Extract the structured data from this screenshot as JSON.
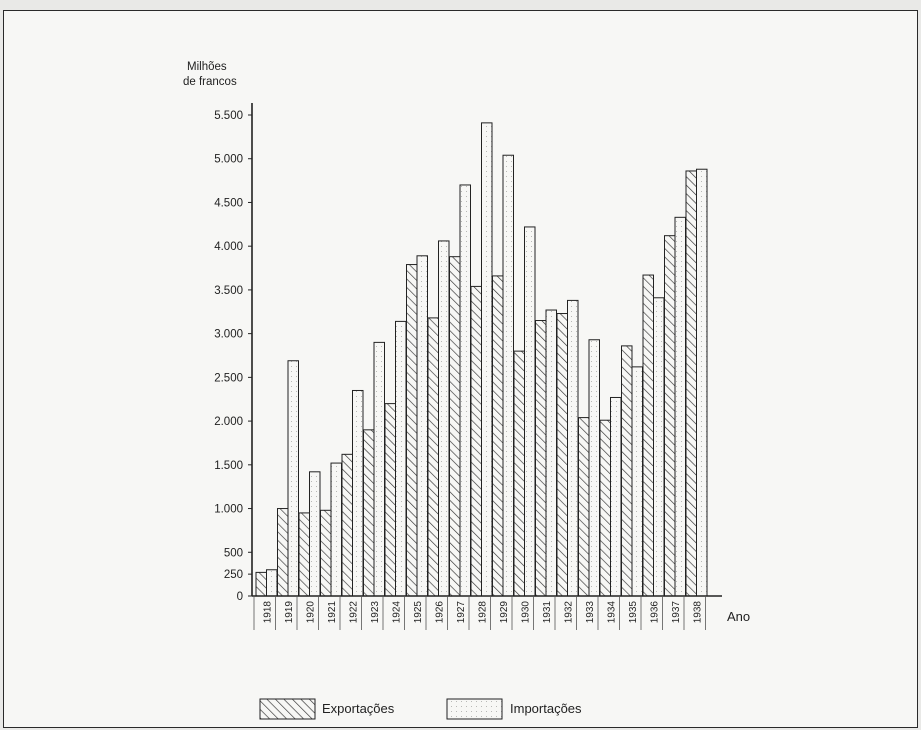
{
  "chart_data": {
    "type": "bar",
    "ylabel_line1": "Milhões",
    "ylabel_line2": "de francos",
    "xlabel": "Ano",
    "ylim": [
      0,
      5500
    ],
    "yticks": [
      0,
      250,
      500,
      1000,
      1500,
      2000,
      2500,
      3000,
      3500,
      4000,
      4500,
      5000,
      5500
    ],
    "ytick_labels": [
      "0",
      "250",
      "500",
      "1.000",
      "1.500",
      "2.000",
      "2.500",
      "3.000",
      "3.500",
      "4.000",
      "4.500",
      "5.000",
      "5.500"
    ],
    "categories": [
      "1918",
      "1919",
      "1920",
      "1921",
      "1922",
      "1923",
      "1924",
      "1925",
      "1926",
      "1927",
      "1928",
      "1929",
      "1930",
      "1931",
      "1932",
      "1933",
      "1934",
      "1935",
      "1936",
      "1937",
      "1938"
    ],
    "series": [
      {
        "name": "Exportações",
        "values": [
          270,
          1000,
          950,
          980,
          1620,
          1900,
          2200,
          3790,
          3180,
          3880,
          3540,
          3660,
          2800,
          3150,
          3230,
          2040,
          2010,
          2860,
          3670,
          4120,
          4860
        ]
      },
      {
        "name": "Importações",
        "values": [
          300,
          2690,
          1420,
          1520,
          2350,
          2900,
          3140,
          3890,
          4060,
          4700,
          5410,
          5040,
          4220,
          3270,
          3380,
          2930,
          2270,
          2620,
          3410,
          4330,
          4880
        ]
      }
    ],
    "grid": false,
    "legend_position": "bottom-center",
    "colors": {
      "ink": "#222222",
      "paper": "#f7f7f5"
    }
  }
}
